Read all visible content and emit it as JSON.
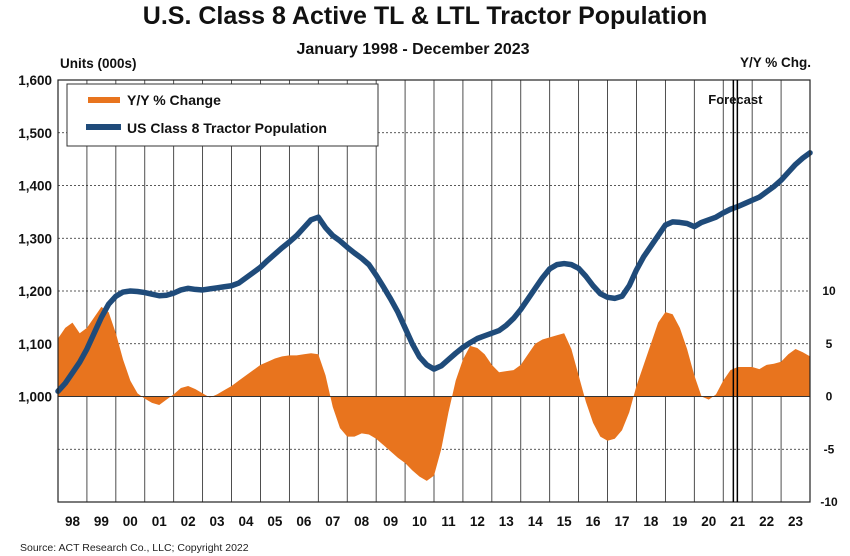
{
  "chart_data": {
    "type": "area+line",
    "title": "U.S. Class 8 Active TL & LTL Tractor Population",
    "subtitle": "January 1998 - December 2023",
    "ylabel_left": "Units (000s)",
    "ylabel_right": "Y/Y % Chg.",
    "ylim_left": [
      800,
      1600
    ],
    "ylim_right": [
      -10,
      30
    ],
    "left_ticks": [
      "1,000",
      "1,100",
      "1,200",
      "1,300",
      "1,400",
      "1,500",
      "1,600"
    ],
    "left_tick_values": [
      1000,
      1100,
      1200,
      1300,
      1400,
      1500,
      1600
    ],
    "right_ticks": [
      "-10",
      "-5",
      "0",
      "5",
      "10"
    ],
    "right_tick_values": [
      -10,
      -5,
      0,
      5,
      10
    ],
    "x_ticks": [
      "98",
      "99",
      "00",
      "01",
      "02",
      "03",
      "04",
      "05",
      "06",
      "07",
      "08",
      "09",
      "10",
      "11",
      "12",
      "13",
      "14",
      "15",
      "16",
      "17",
      "18",
      "19",
      "20",
      "21",
      "22",
      "23"
    ],
    "x_range": [
      1998.0,
      2024.0
    ],
    "grid": "horizontal and vertical",
    "legend": "top-left",
    "forecast_label": "Forecast",
    "forecast_start": 2021.35,
    "series": [
      {
        "name": "Y/Y % Change",
        "type": "area",
        "color": "#E8741E",
        "x": [
          1998.0,
          1998.25,
          1998.5,
          1998.75,
          1999.0,
          1999.25,
          1999.5,
          1999.75,
          2000.0,
          2000.25,
          2000.5,
          2000.75,
          2001.0,
          2001.25,
          2001.5,
          2001.75,
          2002.0,
          2002.25,
          2002.5,
          2002.75,
          2003.0,
          2003.25,
          2003.5,
          2003.75,
          2004.0,
          2004.25,
          2004.5,
          2004.75,
          2005.0,
          2005.25,
          2005.5,
          2005.75,
          2006.0,
          2006.25,
          2006.5,
          2006.75,
          2007.0,
          2007.25,
          2007.5,
          2007.75,
          2008.0,
          2008.25,
          2008.5,
          2008.75,
          2009.0,
          2009.25,
          2009.5,
          2009.75,
          2010.0,
          2010.25,
          2010.5,
          2010.75,
          2011.0,
          2011.25,
          2011.5,
          2011.75,
          2012.0,
          2012.25,
          2012.5,
          2012.75,
          2013.0,
          2013.25,
          2013.5,
          2013.75,
          2014.0,
          2014.25,
          2014.5,
          2014.75,
          2015.0,
          2015.25,
          2015.5,
          2015.75,
          2016.0,
          2016.25,
          2016.5,
          2016.75,
          2017.0,
          2017.25,
          2017.5,
          2017.75,
          2018.0,
          2018.25,
          2018.5,
          2018.75,
          2019.0,
          2019.25,
          2019.5,
          2019.75,
          2020.0,
          2020.25,
          2020.5,
          2020.75,
          2021.0,
          2021.25,
          2021.5,
          2021.75,
          2022.0,
          2022.25,
          2022.5,
          2022.75,
          2023.0,
          2023.25,
          2023.5,
          2023.75,
          2024.0
        ],
        "values": [
          5.5,
          6.5,
          7.0,
          6.0,
          6.5,
          7.5,
          8.5,
          8.0,
          6.0,
          3.5,
          1.5,
          0.3,
          -0.2,
          -0.6,
          -0.8,
          -0.3,
          0.2,
          0.8,
          1.0,
          0.7,
          0.3,
          -0.1,
          0.2,
          0.6,
          1.0,
          1.5,
          2.0,
          2.5,
          3.0,
          3.3,
          3.6,
          3.8,
          3.9,
          3.9,
          4.0,
          4.1,
          4.0,
          2.0,
          -1.0,
          -3.0,
          -3.8,
          -3.8,
          -3.5,
          -3.6,
          -4.0,
          -4.6,
          -5.2,
          -5.8,
          -6.3,
          -7.0,
          -7.6,
          -8.0,
          -7.5,
          -5.0,
          -1.5,
          1.5,
          3.5,
          4.8,
          4.6,
          4.0,
          3.0,
          2.3,
          2.4,
          2.5,
          3.0,
          4.0,
          5.0,
          5.4,
          5.6,
          5.8,
          6.0,
          4.5,
          2.0,
          -0.5,
          -2.5,
          -3.8,
          -4.2,
          -4.0,
          -3.2,
          -1.5,
          1.0,
          3.0,
          5.0,
          7.0,
          8.0,
          7.8,
          6.5,
          4.5,
          2.0,
          0.0,
          -0.3,
          0.2,
          1.5,
          2.5,
          2.8,
          2.8,
          2.8,
          2.6,
          3.0,
          3.1,
          3.3,
          4.0,
          4.5,
          4.2,
          3.8
        ]
      },
      {
        "name": "US Class 8 Tractor Population",
        "type": "line",
        "color": "#1F4B7A",
        "x": [
          1998.0,
          1998.25,
          1998.5,
          1998.75,
          1999.0,
          1999.25,
          1999.5,
          1999.75,
          2000.0,
          2000.25,
          2000.5,
          2000.75,
          2001.0,
          2001.25,
          2001.5,
          2001.75,
          2002.0,
          2002.25,
          2002.5,
          2002.75,
          2003.0,
          2003.25,
          2003.5,
          2003.75,
          2004.0,
          2004.25,
          2004.5,
          2004.75,
          2005.0,
          2005.25,
          2005.5,
          2005.75,
          2006.0,
          2006.25,
          2006.5,
          2006.75,
          2007.0,
          2007.25,
          2007.5,
          2007.75,
          2008.0,
          2008.25,
          2008.5,
          2008.75,
          2009.0,
          2009.25,
          2009.5,
          2009.75,
          2010.0,
          2010.25,
          2010.5,
          2010.75,
          2011.0,
          2011.25,
          2011.5,
          2011.75,
          2012.0,
          2012.25,
          2012.5,
          2012.75,
          2013.0,
          2013.25,
          2013.5,
          2013.75,
          2014.0,
          2014.25,
          2014.5,
          2014.75,
          2015.0,
          2015.25,
          2015.5,
          2015.75,
          2016.0,
          2016.25,
          2016.5,
          2016.75,
          2017.0,
          2017.25,
          2017.5,
          2017.75,
          2018.0,
          2018.25,
          2018.5,
          2018.75,
          2019.0,
          2019.25,
          2019.5,
          2019.75,
          2020.0,
          2020.25,
          2020.5,
          2020.75,
          2021.0,
          2021.25,
          2021.5,
          2021.75,
          2022.0,
          2022.25,
          2022.5,
          2022.75,
          2023.0,
          2023.25,
          2023.5,
          2023.75,
          2024.0
        ],
        "values": [
          1010,
          1025,
          1045,
          1065,
          1090,
          1120,
          1150,
          1175,
          1190,
          1198,
          1200,
          1199,
          1197,
          1194,
          1191,
          1192,
          1196,
          1202,
          1205,
          1203,
          1202,
          1204,
          1206,
          1208,
          1210,
          1215,
          1225,
          1235,
          1245,
          1258,
          1270,
          1282,
          1293,
          1305,
          1320,
          1335,
          1340,
          1320,
          1305,
          1295,
          1283,
          1272,
          1262,
          1250,
          1230,
          1208,
          1185,
          1160,
          1130,
          1100,
          1075,
          1060,
          1052,
          1058,
          1070,
          1082,
          1093,
          1102,
          1110,
          1115,
          1120,
          1125,
          1135,
          1148,
          1165,
          1185,
          1205,
          1225,
          1242,
          1250,
          1252,
          1250,
          1243,
          1228,
          1210,
          1195,
          1188,
          1186,
          1190,
          1210,
          1240,
          1265,
          1285,
          1305,
          1325,
          1331,
          1330,
          1328,
          1322,
          1330,
          1335,
          1340,
          1348,
          1355,
          1360,
          1366,
          1372,
          1378,
          1388,
          1398,
          1410,
          1425,
          1440,
          1452,
          1462
        ]
      }
    ]
  },
  "source": "Source: ACT Research Co., LLC; Copyright  2022"
}
